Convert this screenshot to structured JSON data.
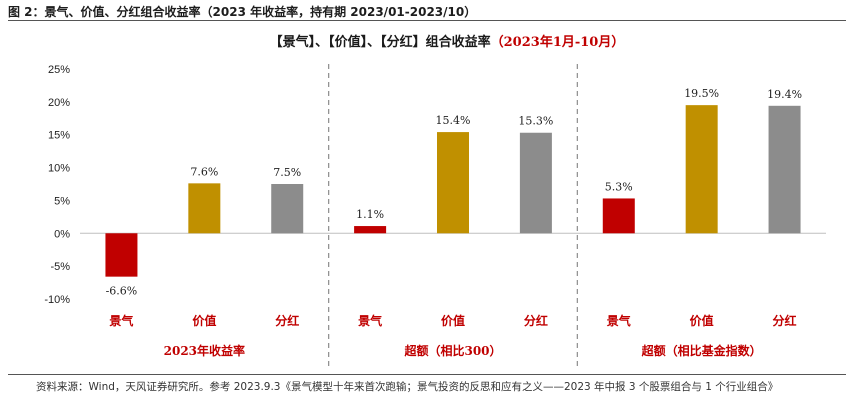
{
  "caption": "图 2：景气、价值、分红组合收益率（2023 年收益率，持有期 2023/01-2023/10）",
  "source": "资料来源：Wind，天风证券研究所。参考 2023.9.3《景气模型十年来首次跑输；景气投资的反思和应有之义——2023 年中报 3 个股票组合与 1 个行业组合》",
  "colors": {
    "red": "#c00000",
    "gold": "#c09000",
    "gray": "#8c8c8c",
    "title_red": "#c00000"
  },
  "chart_data": {
    "type": "bar",
    "title_parts": [
      {
        "text": "【景气】、【价值】、【分红】组合收益率",
        "color": "#1a1a1a"
      },
      {
        "text": "（2023年1月-10月）",
        "color": "#c00000"
      }
    ],
    "ylim": [
      -10,
      25
    ],
    "yticks": [
      -10,
      -5,
      0,
      5,
      10,
      15,
      20,
      25
    ],
    "ytick_labels": [
      "-10%",
      "-5%",
      "0%",
      "5%",
      "10%",
      "15%",
      "20%",
      "25%"
    ],
    "groups": [
      {
        "name": "2023年收益率",
        "categories": [
          "景气",
          "价值",
          "分红"
        ],
        "values": [
          -6.6,
          7.6,
          7.5
        ],
        "labels": [
          "-6.6%",
          "7.6%",
          "7.5%"
        ],
        "colors": [
          "#c00000",
          "#c09000",
          "#8c8c8c"
        ]
      },
      {
        "name": "超额（相比300）",
        "categories": [
          "景气",
          "价值",
          "分红"
        ],
        "values": [
          1.1,
          15.4,
          15.3
        ],
        "labels": [
          "1.1%",
          "15.4%",
          "15.3%"
        ],
        "colors": [
          "#c00000",
          "#c09000",
          "#8c8c8c"
        ]
      },
      {
        "name": "超额（相比基金指数）",
        "categories": [
          "景气",
          "价值",
          "分红"
        ],
        "values": [
          5.3,
          19.5,
          19.4
        ],
        "labels": [
          "5.3%",
          "19.5%",
          "19.4%"
        ],
        "colors": [
          "#c00000",
          "#c09000",
          "#8c8c8c"
        ]
      }
    ]
  }
}
